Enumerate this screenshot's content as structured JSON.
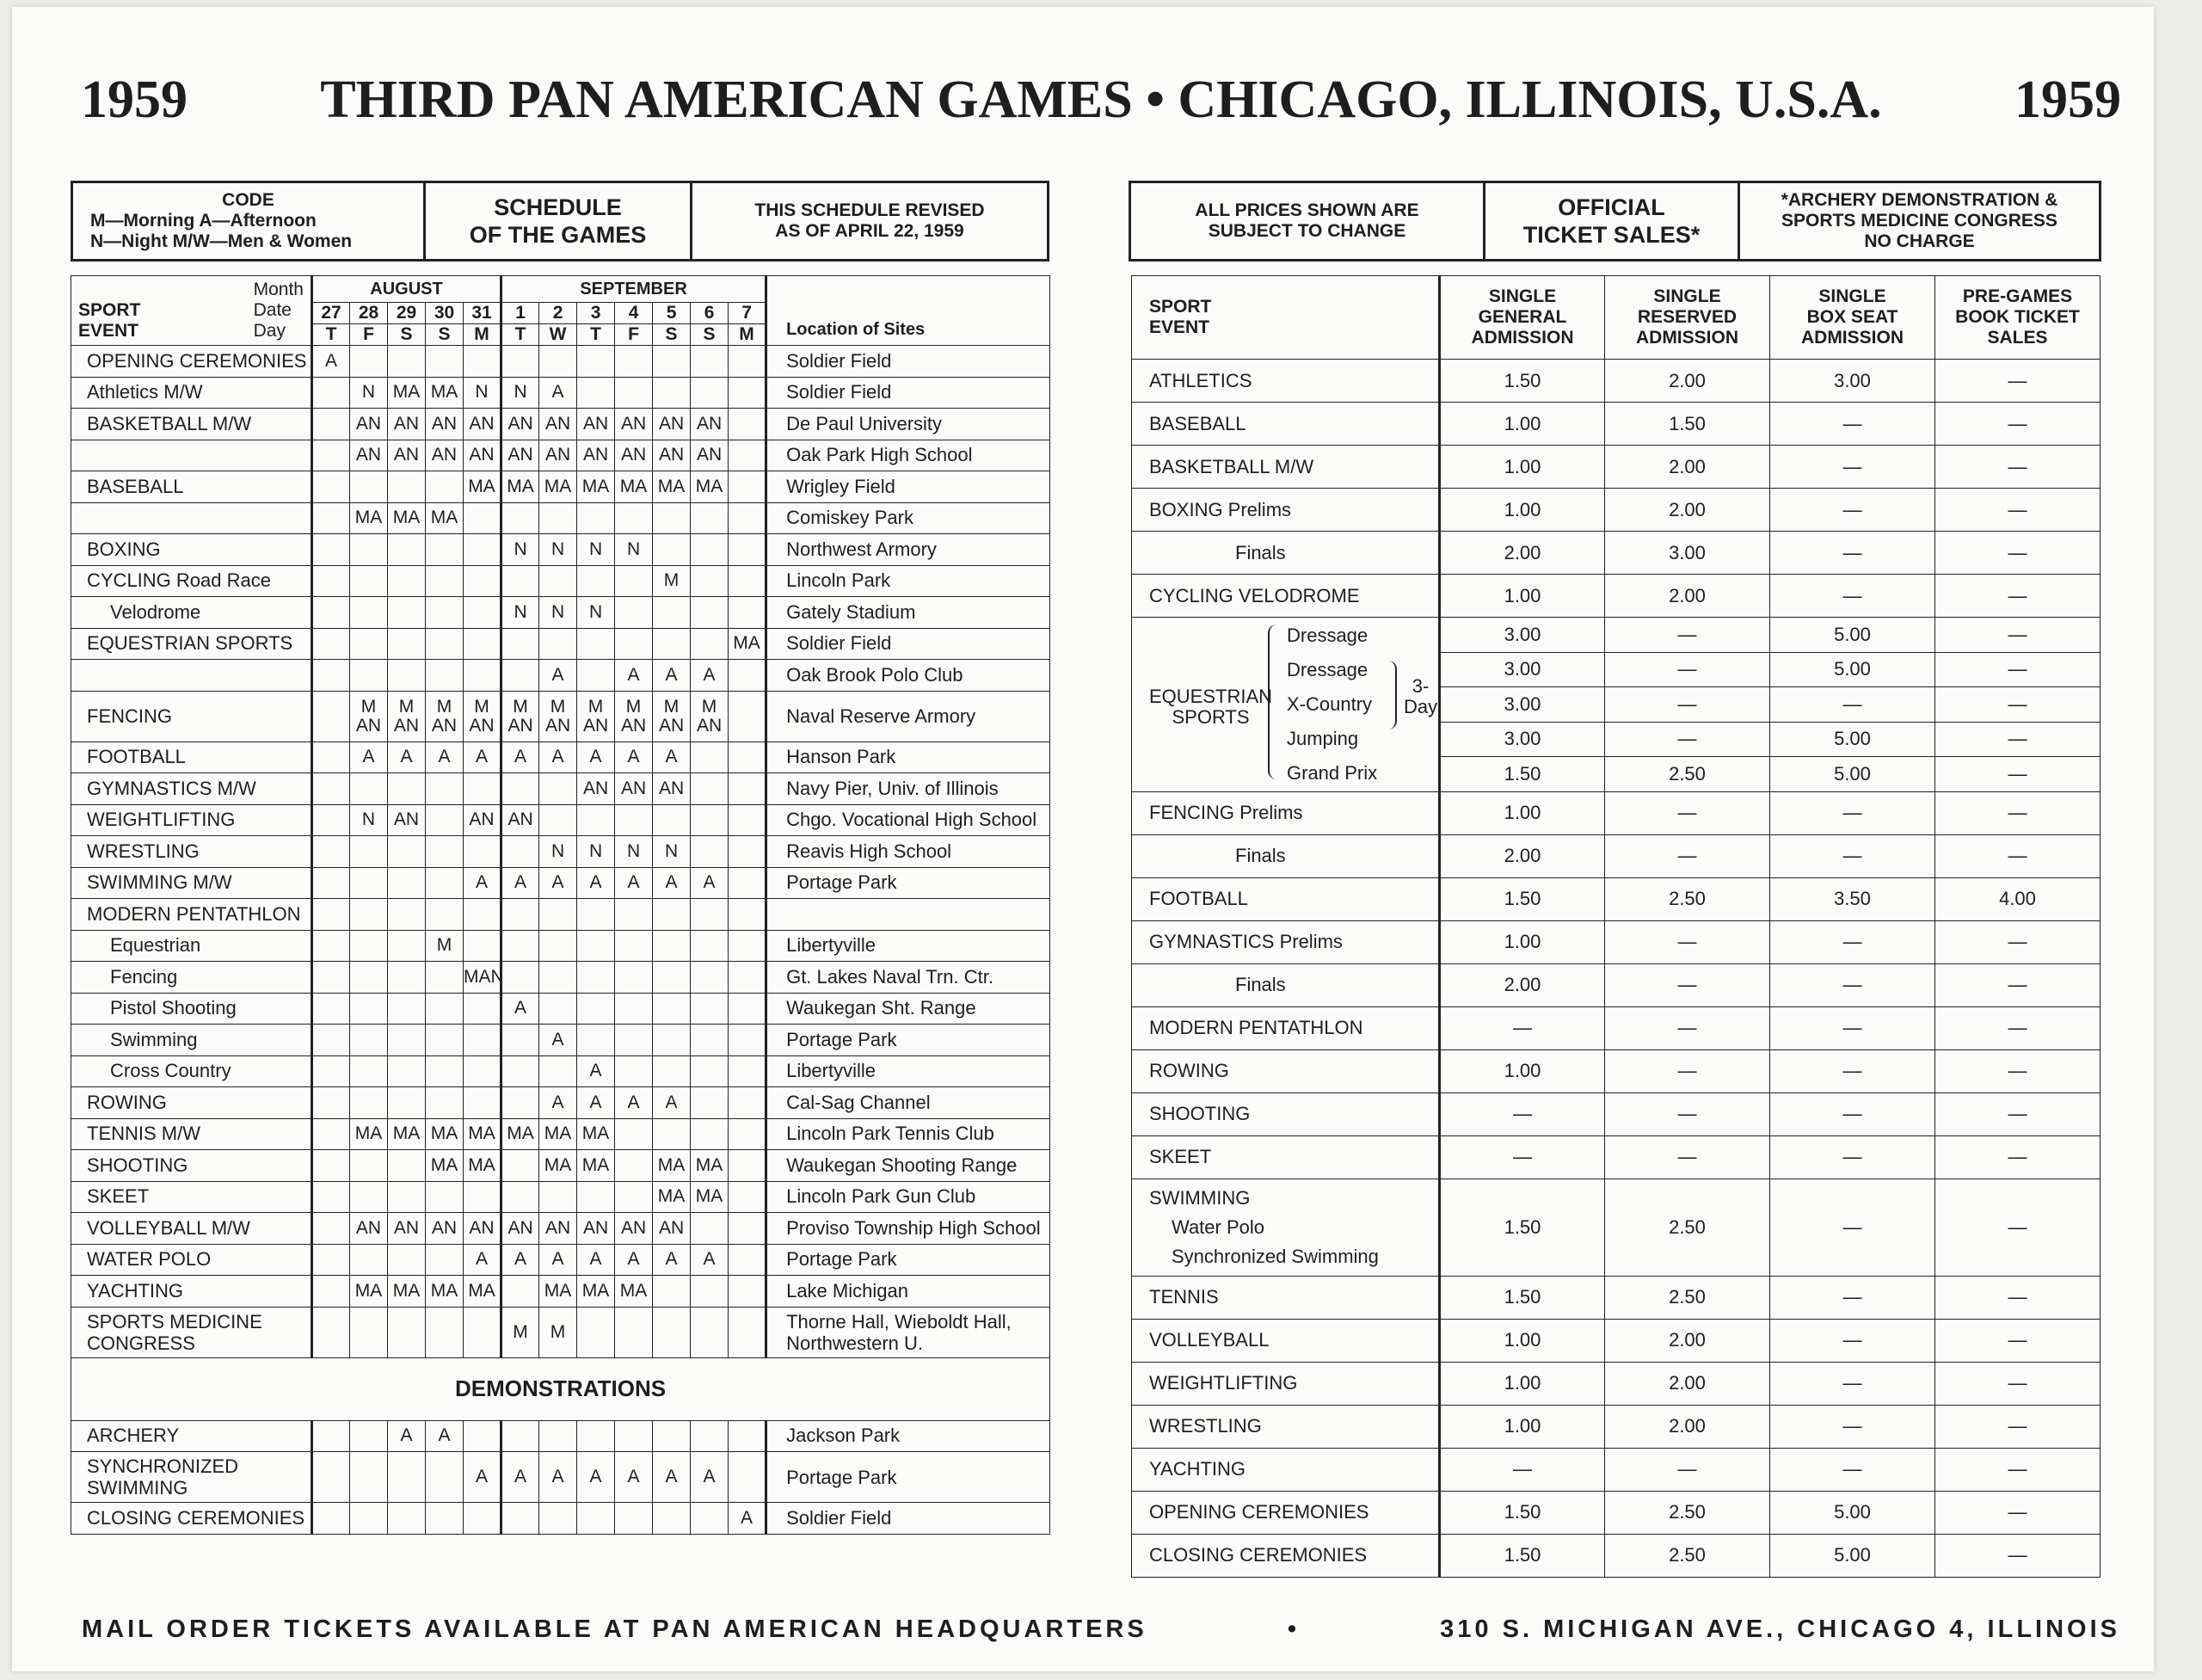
{
  "title": {
    "left_year": "1959",
    "main": "THIRD PAN AMERICAN GAMES • CHICAGO, ILLINOIS, U.S.A.",
    "right_year": "1959"
  },
  "code_box": {
    "code_title": "CODE",
    "code_line1": "M—Morning   A—Afternoon",
    "code_line2": "N—Night   M/W—Men & Women",
    "schedule_label_1": "SCHEDULE",
    "schedule_label_2": "OF THE GAMES",
    "revised_1": "THIS SCHEDULE REVISED",
    "revised_2": "AS OF APRIL 22, 1959"
  },
  "price_box": {
    "subject_1": "ALL PRICES SHOWN ARE",
    "subject_2": "SUBJECT TO CHANGE",
    "official_1": "OFFICIAL",
    "official_2": "TICKET SALES*",
    "archery_1": "*ARCHERY DEMONSTRATION &",
    "archery_2": "SPORTS MEDICINE CONGRESS",
    "archery_3": "NO CHARGE"
  },
  "schedule": {
    "header": {
      "month_label": "Month",
      "date_label": "Date",
      "day_label": "Day",
      "sport": "SPORT",
      "event": "EVENT",
      "august": "AUGUST",
      "september": "SEPTEMBER",
      "location": "Location of Sites",
      "dates": [
        "27",
        "28",
        "29",
        "30",
        "31",
        "1",
        "2",
        "3",
        "4",
        "5",
        "6",
        "7"
      ],
      "days": [
        "T",
        "F",
        "S",
        "S",
        "M",
        "T",
        "W",
        "T",
        "F",
        "S",
        "S",
        "M"
      ]
    },
    "rows": [
      {
        "event": "OPENING CEREMONIES",
        "cells": [
          "A",
          "",
          "",
          "",
          "",
          "",
          "",
          "",
          "",
          "",
          "",
          ""
        ],
        "location": "Soldier Field"
      },
      {
        "event": "Athletics   M/W",
        "cells": [
          "",
          "N",
          "MA",
          "MA",
          "N",
          "N",
          "A",
          "",
          "",
          "",
          "",
          ""
        ],
        "location": "Soldier Field"
      },
      {
        "event": "BASKETBALL   M/W",
        "cells": [
          "",
          "AN",
          "AN",
          "AN",
          "AN",
          "AN",
          "AN",
          "AN",
          "AN",
          "AN",
          "AN",
          ""
        ],
        "location": "De Paul University"
      },
      {
        "event": "",
        "cells": [
          "",
          "AN",
          "AN",
          "AN",
          "AN",
          "AN",
          "AN",
          "AN",
          "AN",
          "AN",
          "AN",
          ""
        ],
        "location": "Oak Park High School"
      },
      {
        "event": "BASEBALL",
        "cells": [
          "",
          "",
          "",
          "",
          "MA",
          "MA",
          "MA",
          "MA",
          "MA",
          "MA",
          "MA",
          ""
        ],
        "location": "Wrigley Field"
      },
      {
        "event": "",
        "cells": [
          "",
          "MA",
          "MA",
          "MA",
          "",
          "",
          "",
          "",
          "",
          "",
          "",
          ""
        ],
        "location": "Comiskey Park"
      },
      {
        "event": "BOXING",
        "cells": [
          "",
          "",
          "",
          "",
          "",
          "N",
          "N",
          "N",
          "N",
          "",
          "",
          ""
        ],
        "location": "Northwest Armory"
      },
      {
        "event": "CYCLING   Road Race",
        "cells": [
          "",
          "",
          "",
          "",
          "",
          "",
          "",
          "",
          "",
          "M",
          "",
          ""
        ],
        "location": "Lincoln Park"
      },
      {
        "event": "Velodrome",
        "sub": true,
        "cells": [
          "",
          "",
          "",
          "",
          "",
          "N",
          "N",
          "N",
          "",
          "",
          "",
          ""
        ],
        "location": "Gately Stadium"
      },
      {
        "event": "EQUESTRIAN SPORTS",
        "cells": [
          "",
          "",
          "",
          "",
          "",
          "",
          "",
          "",
          "",
          "",
          "",
          "MA"
        ],
        "location": "Soldier Field"
      },
      {
        "event": "",
        "cells": [
          "",
          "",
          "",
          "",
          "",
          "",
          "A",
          "",
          "A",
          "A",
          "A",
          ""
        ],
        "location": "Oak Brook Polo Club"
      },
      {
        "event": "FENCING",
        "tall": true,
        "cells": [
          "",
          "M AN",
          "M AN",
          "M AN",
          "M AN",
          "M AN",
          "M AN",
          "M AN",
          "M AN",
          "M AN",
          "M AN",
          ""
        ],
        "location": "Naval Reserve Armory"
      },
      {
        "event": "FOOTBALL",
        "cells": [
          "",
          "A",
          "A",
          "A",
          "A",
          "A",
          "A",
          "A",
          "A",
          "A",
          "",
          ""
        ],
        "location": "Hanson Park"
      },
      {
        "event": "GYMNASTICS  M/W",
        "cells": [
          "",
          "",
          "",
          "",
          "",
          "",
          "",
          "AN",
          "AN",
          "AN",
          "",
          ""
        ],
        "location": "Navy Pier, Univ. of Illinois"
      },
      {
        "event": "WEIGHTLIFTING",
        "cells": [
          "",
          "N",
          "AN",
          "",
          "AN",
          "AN",
          "",
          "",
          "",
          "",
          "",
          ""
        ],
        "location": "Chgo. Vocational High School"
      },
      {
        "event": "WRESTLING",
        "cells": [
          "",
          "",
          "",
          "",
          "",
          "",
          "N",
          "N",
          "N",
          "N",
          "",
          ""
        ],
        "location": "Reavis High School"
      },
      {
        "event": "SWIMMING  M/W",
        "cells": [
          "",
          "",
          "",
          "",
          "A",
          "A",
          "A",
          "A",
          "A",
          "A",
          "A",
          ""
        ],
        "location": "Portage Park"
      },
      {
        "event": "MODERN PENTATHLON",
        "cells": [
          "",
          "",
          "",
          "",
          "",
          "",
          "",
          "",
          "",
          "",
          "",
          ""
        ],
        "location": ""
      },
      {
        "event": "Equestrian",
        "sub": true,
        "cells": [
          "",
          "",
          "",
          "M",
          "",
          "",
          "",
          "",
          "",
          "",
          "",
          ""
        ],
        "location": "Libertyville"
      },
      {
        "event": "Fencing",
        "sub": true,
        "cells": [
          "",
          "",
          "",
          "",
          "MAN",
          "",
          "",
          "",
          "",
          "",
          "",
          ""
        ],
        "location": "Gt. Lakes Naval Trn. Ctr."
      },
      {
        "event": "Pistol Shooting",
        "sub": true,
        "cells": [
          "",
          "",
          "",
          "",
          "",
          "A",
          "",
          "",
          "",
          "",
          "",
          ""
        ],
        "location": "Waukegan Sht. Range"
      },
      {
        "event": "Swimming",
        "sub": true,
        "cells": [
          "",
          "",
          "",
          "",
          "",
          "",
          "A",
          "",
          "",
          "",
          "",
          ""
        ],
        "location": "Portage Park"
      },
      {
        "event": "Cross Country",
        "sub": true,
        "cells": [
          "",
          "",
          "",
          "",
          "",
          "",
          "",
          "A",
          "",
          "",
          "",
          ""
        ],
        "location": "Libertyville"
      },
      {
        "event": "ROWING",
        "cells": [
          "",
          "",
          "",
          "",
          "",
          "",
          "A",
          "A",
          "A",
          "A",
          "",
          ""
        ],
        "location": "Cal-Sag Channel"
      },
      {
        "event": "TENNIS   M/W",
        "cells": [
          "",
          "MA",
          "MA",
          "MA",
          "MA",
          "MA",
          "MA",
          "MA",
          "",
          "",
          "",
          ""
        ],
        "location": "Lincoln Park Tennis Club"
      },
      {
        "event": "SHOOTING",
        "cells": [
          "",
          "",
          "",
          "MA",
          "MA",
          "",
          "MA",
          "MA",
          "",
          "MA",
          "MA",
          ""
        ],
        "location": "Waukegan Shooting Range"
      },
      {
        "event": "SKEET",
        "cells": [
          "",
          "",
          "",
          "",
          "",
          "",
          "",
          "",
          "",
          "MA",
          "MA",
          ""
        ],
        "location": "Lincoln Park Gun Club"
      },
      {
        "event": "VOLLEYBALL   M/W",
        "cells": [
          "",
          "AN",
          "AN",
          "AN",
          "AN",
          "AN",
          "AN",
          "AN",
          "AN",
          "AN",
          "",
          ""
        ],
        "location": "Proviso Township High School"
      },
      {
        "event": "WATER POLO",
        "cells": [
          "",
          "",
          "",
          "",
          "A",
          "A",
          "A",
          "A",
          "A",
          "A",
          "A",
          ""
        ],
        "location": "Portage Park"
      },
      {
        "event": "YACHTING",
        "cells": [
          "",
          "MA",
          "MA",
          "MA",
          "MA",
          "",
          "MA",
          "MA",
          "MA",
          "",
          "",
          ""
        ],
        "location": "Lake Michigan"
      },
      {
        "event": "SPORTS MEDICINE CONGRESS",
        "tall": true,
        "cells": [
          "",
          "",
          "",
          "",
          "",
          "M",
          "M",
          "",
          "",
          "",
          "",
          ""
        ],
        "location": "Thorne Hall, Wieboldt Hall, Northwestern U."
      }
    ],
    "demonstrations_label": "DEMONSTRATIONS",
    "demo_rows": [
      {
        "event": "ARCHERY",
        "cells": [
          "",
          "",
          "A",
          "A",
          "",
          "",
          "",
          "",
          "",
          "",
          "",
          ""
        ],
        "location": "Jackson Park"
      },
      {
        "event": "SYNCHRONIZED SWIMMING",
        "tall": true,
        "cells": [
          "",
          "",
          "",
          "",
          "A",
          "A",
          "A",
          "A",
          "A",
          "A",
          "A",
          ""
        ],
        "location": "Portage Park"
      },
      {
        "event": "CLOSING CEREMONIES",
        "cells": [
          "",
          "",
          "",
          "",
          "",
          "",
          "",
          "",
          "",
          "",
          "",
          "A"
        ],
        "location": "Soldier Field"
      }
    ]
  },
  "prices": {
    "header": {
      "sport": "SPORT",
      "event": "EVENT",
      "general_1": "SINGLE",
      "general_2": "GENERAL",
      "general_3": "ADMISSION",
      "reserved_1": "SINGLE",
      "reserved_2": "RESERVED",
      "reserved_3": "ADMISSION",
      "box_1": "SINGLE",
      "box_2": "BOX SEAT",
      "box_3": "ADMISSION",
      "book_1": "PRE-GAMES",
      "book_2": "BOOK TICKET",
      "book_3": "SALES"
    },
    "rows_top": [
      {
        "event": "ATHLETICS",
        "vals": [
          "1.50",
          "2.00",
          "3.00",
          "—"
        ]
      },
      {
        "event": "BASEBALL",
        "vals": [
          "1.00",
          "1.50",
          "—",
          "—"
        ]
      },
      {
        "event": "BASKETBALL   M/W",
        "vals": [
          "1.00",
          "2.00",
          "—",
          "—"
        ]
      },
      {
        "event": "BOXING   Prelims",
        "vals": [
          "1.00",
          "2.00",
          "—",
          "—"
        ]
      },
      {
        "event": "Finals",
        "indent": true,
        "vals": [
          "2.00",
          "3.00",
          "—",
          "—"
        ]
      },
      {
        "event": "CYCLING   VELODROME",
        "vals": [
          "1.00",
          "2.00",
          "—",
          "—"
        ]
      }
    ],
    "equestrian": {
      "label_1": "EQUESTRIAN",
      "label_2": "SPORTS",
      "three_day_1": "3-",
      "three_day_2": "Day",
      "rows": [
        {
          "event": "Dressage",
          "vals": [
            "3.00",
            "—",
            "5.00",
            "—"
          ]
        },
        {
          "event": "Dressage",
          "vals": [
            "3.00",
            "—",
            "5.00",
            "—"
          ]
        },
        {
          "event": "X-Country",
          "vals": [
            "3.00",
            "—",
            "—",
            "—"
          ]
        },
        {
          "event": "Jumping",
          "vals": [
            "3.00",
            "—",
            "5.00",
            "—"
          ]
        },
        {
          "event": "Grand Prix",
          "vals": [
            "1.50",
            "2.50",
            "5.00",
            "—"
          ]
        }
      ]
    },
    "rows_bottom": [
      {
        "event": "FENCING   Prelims",
        "vals": [
          "1.00",
          "—",
          "—",
          "—"
        ]
      },
      {
        "event": "Finals",
        "indent": true,
        "vals": [
          "2.00",
          "—",
          "—",
          "—"
        ]
      },
      {
        "event": "FOOTBALL",
        "vals": [
          "1.50",
          "2.50",
          "3.50",
          "4.00"
        ]
      },
      {
        "event": "GYMNASTICS   Prelims",
        "vals": [
          "1.00",
          "—",
          "—",
          "—"
        ]
      },
      {
        "event": "Finals",
        "indent": true,
        "vals": [
          "2.00",
          "—",
          "—",
          "—"
        ]
      },
      {
        "event": "MODERN PENTATHLON",
        "vals": [
          "—",
          "—",
          "—",
          "—"
        ]
      },
      {
        "event": "ROWING",
        "vals": [
          "1.00",
          "—",
          "—",
          "—"
        ]
      },
      {
        "event": "SHOOTING",
        "vals": [
          "—",
          "—",
          "—",
          "—"
        ]
      },
      {
        "event": "SKEET",
        "vals": [
          "—",
          "—",
          "—",
          "—"
        ]
      }
    ],
    "swimming": {
      "line1": "SWIMMING",
      "line2": "Water Polo",
      "line3": "Synchronized Swimming",
      "vals": [
        "1.50",
        "2.50",
        "—",
        "—"
      ]
    },
    "rows_end": [
      {
        "event": "TENNIS",
        "vals": [
          "1.50",
          "2.50",
          "—",
          "—"
        ]
      },
      {
        "event": "VOLLEYBALL",
        "vals": [
          "1.00",
          "2.00",
          "—",
          "—"
        ]
      },
      {
        "event": "WEIGHTLIFTING",
        "vals": [
          "1.00",
          "2.00",
          "—",
          "—"
        ]
      },
      {
        "event": "WRESTLING",
        "vals": [
          "1.00",
          "2.00",
          "—",
          "—"
        ]
      },
      {
        "event": "YACHTING",
        "vals": [
          "—",
          "—",
          "—",
          "—"
        ]
      },
      {
        "event": "OPENING CEREMONIES",
        "vals": [
          "1.50",
          "2.50",
          "5.00",
          "—"
        ]
      },
      {
        "event": "CLOSING CEREMONIES",
        "vals": [
          "1.50",
          "2.50",
          "5.00",
          "—"
        ]
      }
    ]
  },
  "footer": {
    "left": "MAIL ORDER TICKETS AVAILABLE AT PAN AMERICAN HEADQUARTERS",
    "dot": "•",
    "right": "310 S. MICHIGAN AVE., CHICAGO 4, ILLINOIS"
  }
}
